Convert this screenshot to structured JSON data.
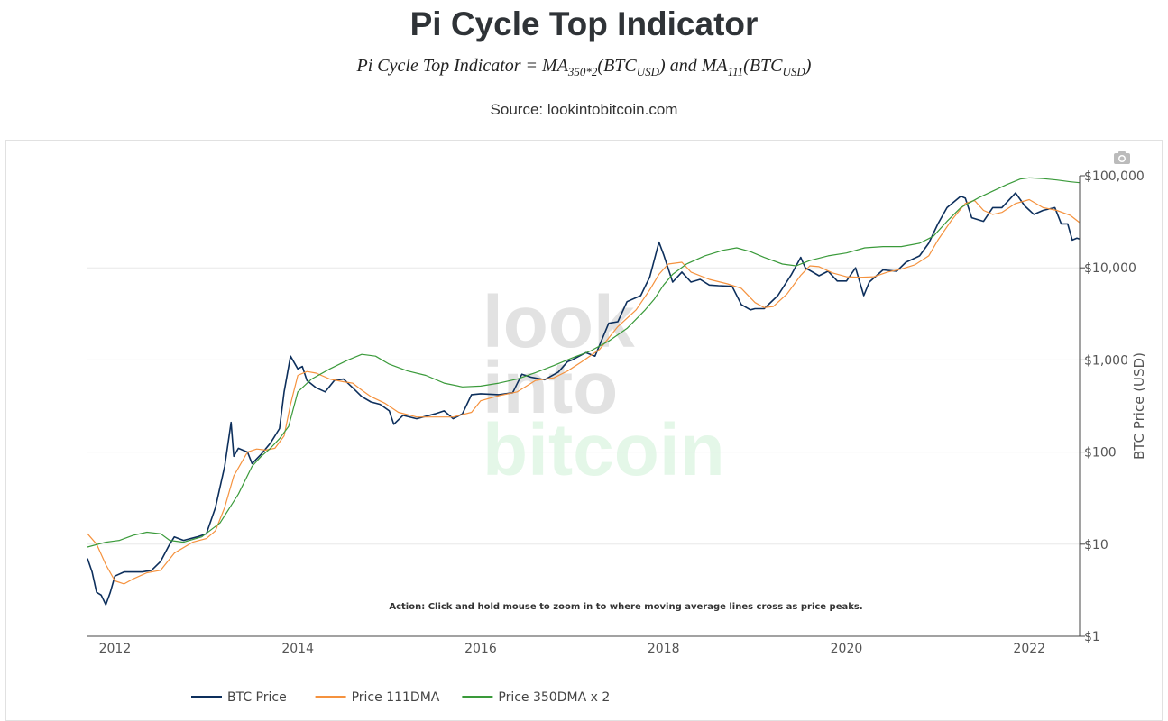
{
  "header": {
    "title": "Pi Cycle Top Indicator",
    "formula_lhs": "Pi Cycle Top Indicator = MA",
    "formula_sub1": "350*2",
    "formula_mid1": "(BTC",
    "formula_sub2": "USD",
    "formula_mid2": ") and MA",
    "formula_sub3": "111",
    "formula_mid3": "(BTC",
    "formula_sub4": "USD",
    "formula_end": ")",
    "source": "Source: lookintobitcoin.com"
  },
  "watermark": {
    "line1": "look",
    "line2": "into",
    "line3": "bitcoin"
  },
  "action_note": "Action: Click and hold mouse to zoom in to where moving average lines cross as price peaks.",
  "chart_data": {
    "type": "line",
    "title": "Pi Cycle Top Indicator",
    "ylabel": "BTC Price (USD)",
    "yscale": "log",
    "ylim": [
      1,
      100000
    ],
    "xlim": [
      2011.7,
      2022.55
    ],
    "x_ticks": [
      2012,
      2014,
      2016,
      2018,
      2020,
      2022
    ],
    "x_tick_labels": [
      "2012",
      "2014",
      "2016",
      "2018",
      "2020",
      "2022"
    ],
    "y_ticks": [
      1,
      10,
      100,
      1000,
      10000,
      100000
    ],
    "y_tick_labels": [
      "$1",
      "$10",
      "$100",
      "$1,000",
      "$10,000",
      "$100,000"
    ],
    "legend_position": "bottom-left",
    "series": [
      {
        "name": "BTC Price",
        "color": "#0d2f5c",
        "points": [
          [
            2011.7,
            7
          ],
          [
            2011.75,
            5
          ],
          [
            2011.8,
            3
          ],
          [
            2011.85,
            2.8
          ],
          [
            2011.9,
            2.2
          ],
          [
            2011.95,
            3
          ],
          [
            2012.0,
            4.5
          ],
          [
            2012.1,
            5
          ],
          [
            2012.2,
            5
          ],
          [
            2012.3,
            5
          ],
          [
            2012.4,
            5.2
          ],
          [
            2012.5,
            6.5
          ],
          [
            2012.6,
            10
          ],
          [
            2012.65,
            12
          ],
          [
            2012.75,
            11
          ],
          [
            2012.9,
            12
          ],
          [
            2013.0,
            13
          ],
          [
            2013.1,
            25
          ],
          [
            2013.2,
            70
          ],
          [
            2013.27,
            210
          ],
          [
            2013.3,
            90
          ],
          [
            2013.35,
            110
          ],
          [
            2013.45,
            100
          ],
          [
            2013.5,
            75
          ],
          [
            2013.6,
            95
          ],
          [
            2013.7,
            125
          ],
          [
            2013.8,
            180
          ],
          [
            2013.85,
            450
          ],
          [
            2013.92,
            1100
          ],
          [
            2014.0,
            800
          ],
          [
            2014.05,
            850
          ],
          [
            2014.1,
            600
          ],
          [
            2014.2,
            500
          ],
          [
            2014.3,
            450
          ],
          [
            2014.4,
            600
          ],
          [
            2014.5,
            620
          ],
          [
            2014.6,
            500
          ],
          [
            2014.7,
            400
          ],
          [
            2014.8,
            350
          ],
          [
            2014.9,
            330
          ],
          [
            2015.0,
            280
          ],
          [
            2015.05,
            200
          ],
          [
            2015.15,
            250
          ],
          [
            2015.3,
            230
          ],
          [
            2015.5,
            260
          ],
          [
            2015.6,
            280
          ],
          [
            2015.7,
            230
          ],
          [
            2015.8,
            260
          ],
          [
            2015.9,
            420
          ],
          [
            2016.0,
            430
          ],
          [
            2016.2,
            420
          ],
          [
            2016.35,
            440
          ],
          [
            2016.45,
            700
          ],
          [
            2016.55,
            650
          ],
          [
            2016.7,
            610
          ],
          [
            2016.85,
            740
          ],
          [
            2016.95,
            960
          ],
          [
            2017.0,
            1000
          ],
          [
            2017.15,
            1200
          ],
          [
            2017.25,
            1100
          ],
          [
            2017.4,
            2500
          ],
          [
            2017.5,
            2600
          ],
          [
            2017.6,
            4300
          ],
          [
            2017.75,
            5000
          ],
          [
            2017.85,
            8000
          ],
          [
            2017.95,
            19000
          ],
          [
            2018.0,
            14000
          ],
          [
            2018.1,
            7000
          ],
          [
            2018.2,
            9000
          ],
          [
            2018.3,
            7000
          ],
          [
            2018.4,
            7500
          ],
          [
            2018.5,
            6500
          ],
          [
            2018.6,
            6400
          ],
          [
            2018.75,
            6300
          ],
          [
            2018.85,
            4000
          ],
          [
            2018.95,
            3500
          ],
          [
            2019.0,
            3600
          ],
          [
            2019.1,
            3600
          ],
          [
            2019.25,
            5000
          ],
          [
            2019.4,
            8500
          ],
          [
            2019.5,
            13000
          ],
          [
            2019.55,
            10000
          ],
          [
            2019.7,
            8200
          ],
          [
            2019.8,
            9200
          ],
          [
            2019.9,
            7200
          ],
          [
            2020.0,
            7200
          ],
          [
            2020.1,
            10000
          ],
          [
            2020.19,
            5000
          ],
          [
            2020.25,
            7000
          ],
          [
            2020.4,
            9500
          ],
          [
            2020.55,
            9200
          ],
          [
            2020.65,
            11500
          ],
          [
            2020.8,
            13500
          ],
          [
            2020.9,
            18500
          ],
          [
            2021.0,
            30000
          ],
          [
            2021.1,
            45000
          ],
          [
            2021.25,
            60000
          ],
          [
            2021.3,
            57000
          ],
          [
            2021.37,
            35000
          ],
          [
            2021.5,
            32000
          ],
          [
            2021.6,
            45000
          ],
          [
            2021.7,
            45000
          ],
          [
            2021.85,
            65000
          ],
          [
            2021.95,
            47000
          ],
          [
            2022.05,
            38000
          ],
          [
            2022.15,
            42000
          ],
          [
            2022.28,
            45000
          ],
          [
            2022.35,
            30000
          ],
          [
            2022.42,
            30000
          ],
          [
            2022.47,
            20000
          ],
          [
            2022.52,
            21000
          ],
          [
            2022.55,
            20500
          ]
        ]
      },
      {
        "name": "Price 111DMA",
        "color": "#f5923e",
        "points": [
          [
            2011.7,
            13
          ],
          [
            2011.8,
            10
          ],
          [
            2011.9,
            6
          ],
          [
            2012.0,
            4.0
          ],
          [
            2012.1,
            3.7
          ],
          [
            2012.2,
            4.2
          ],
          [
            2012.35,
            4.9
          ],
          [
            2012.5,
            5.2
          ],
          [
            2012.65,
            8
          ],
          [
            2012.85,
            10.5
          ],
          [
            2013.0,
            11.5
          ],
          [
            2013.1,
            14
          ],
          [
            2013.2,
            25
          ],
          [
            2013.3,
            55
          ],
          [
            2013.45,
            100
          ],
          [
            2013.55,
            108
          ],
          [
            2013.65,
            105
          ],
          [
            2013.75,
            110
          ],
          [
            2013.85,
            150
          ],
          [
            2013.92,
            330
          ],
          [
            2014.0,
            680
          ],
          [
            2014.1,
            750
          ],
          [
            2014.2,
            720
          ],
          [
            2014.35,
            620
          ],
          [
            2014.5,
            580
          ],
          [
            2014.6,
            560
          ],
          [
            2014.7,
            470
          ],
          [
            2014.8,
            400
          ],
          [
            2014.95,
            340
          ],
          [
            2015.1,
            270
          ],
          [
            2015.3,
            240
          ],
          [
            2015.5,
            240
          ],
          [
            2015.7,
            240
          ],
          [
            2015.9,
            270
          ],
          [
            2016.0,
            360
          ],
          [
            2016.2,
            410
          ],
          [
            2016.4,
            450
          ],
          [
            2016.6,
            600
          ],
          [
            2016.8,
            640
          ],
          [
            2016.95,
            760
          ],
          [
            2017.1,
            950
          ],
          [
            2017.3,
            1300
          ],
          [
            2017.5,
            2300
          ],
          [
            2017.7,
            3500
          ],
          [
            2017.85,
            5800
          ],
          [
            2017.95,
            8500
          ],
          [
            2018.05,
            11000
          ],
          [
            2018.2,
            11500
          ],
          [
            2018.3,
            9000
          ],
          [
            2018.5,
            7500
          ],
          [
            2018.7,
            6700
          ],
          [
            2018.85,
            6000
          ],
          [
            2019.0,
            4200
          ],
          [
            2019.1,
            3700
          ],
          [
            2019.2,
            3800
          ],
          [
            2019.35,
            5200
          ],
          [
            2019.5,
            8300
          ],
          [
            2019.6,
            10500
          ],
          [
            2019.7,
            10300
          ],
          [
            2019.85,
            8800
          ],
          [
            2020.0,
            8000
          ],
          [
            2020.15,
            7900
          ],
          [
            2020.3,
            8000
          ],
          [
            2020.45,
            9000
          ],
          [
            2020.6,
            9700
          ],
          [
            2020.75,
            10800
          ],
          [
            2020.9,
            13500
          ],
          [
            2021.0,
            20000
          ],
          [
            2021.15,
            33000
          ],
          [
            2021.3,
            50000
          ],
          [
            2021.4,
            54000
          ],
          [
            2021.5,
            42000
          ],
          [
            2021.6,
            38000
          ],
          [
            2021.7,
            40000
          ],
          [
            2021.85,
            50000
          ],
          [
            2022.0,
            55000
          ],
          [
            2022.15,
            45000
          ],
          [
            2022.3,
            42000
          ],
          [
            2022.45,
            37000
          ],
          [
            2022.55,
            31000
          ]
        ]
      },
      {
        "name": "Price 350DMA x 2",
        "color": "#3a9a3a",
        "points": [
          [
            2011.7,
            9.3
          ],
          [
            2011.9,
            10.5
          ],
          [
            2012.05,
            11
          ],
          [
            2012.2,
            12.5
          ],
          [
            2012.35,
            13.5
          ],
          [
            2012.5,
            13
          ],
          [
            2012.6,
            11
          ],
          [
            2012.75,
            10.5
          ],
          [
            2012.95,
            12
          ],
          [
            2013.15,
            17
          ],
          [
            2013.35,
            35
          ],
          [
            2013.5,
            70
          ],
          [
            2013.6,
            90
          ],
          [
            2013.7,
            110
          ],
          [
            2013.8,
            140
          ],
          [
            2013.9,
            190
          ],
          [
            2014.0,
            450
          ],
          [
            2014.15,
            620
          ],
          [
            2014.35,
            800
          ],
          [
            2014.55,
            1000
          ],
          [
            2014.7,
            1150
          ],
          [
            2014.85,
            1100
          ],
          [
            2015.0,
            900
          ],
          [
            2015.2,
            760
          ],
          [
            2015.4,
            680
          ],
          [
            2015.6,
            560
          ],
          [
            2015.8,
            510
          ],
          [
            2016.0,
            520
          ],
          [
            2016.2,
            560
          ],
          [
            2016.4,
            620
          ],
          [
            2016.6,
            730
          ],
          [
            2016.8,
            870
          ],
          [
            2017.0,
            1050
          ],
          [
            2017.2,
            1250
          ],
          [
            2017.4,
            1600
          ],
          [
            2017.6,
            2200
          ],
          [
            2017.8,
            3500
          ],
          [
            2017.9,
            4600
          ],
          [
            2018.0,
            6500
          ],
          [
            2018.1,
            8500
          ],
          [
            2018.25,
            11000
          ],
          [
            2018.45,
            13500
          ],
          [
            2018.65,
            15500
          ],
          [
            2018.8,
            16500
          ],
          [
            2018.95,
            15000
          ],
          [
            2019.1,
            13000
          ],
          [
            2019.3,
            11000
          ],
          [
            2019.45,
            10500
          ],
          [
            2019.6,
            12000
          ],
          [
            2019.8,
            13500
          ],
          [
            2020.0,
            14500
          ],
          [
            2020.2,
            16500
          ],
          [
            2020.4,
            17000
          ],
          [
            2020.6,
            17000
          ],
          [
            2020.8,
            18500
          ],
          [
            2020.95,
            22000
          ],
          [
            2021.1,
            32000
          ],
          [
            2021.25,
            45000
          ],
          [
            2021.45,
            58000
          ],
          [
            2021.6,
            68000
          ],
          [
            2021.75,
            80000
          ],
          [
            2021.9,
            92000
          ],
          [
            2022.0,
            95000
          ],
          [
            2022.15,
            93000
          ],
          [
            2022.3,
            90000
          ],
          [
            2022.45,
            86000
          ],
          [
            2022.55,
            84000
          ]
        ]
      }
    ]
  },
  "colors": {
    "btc_price": "#0d2f5c",
    "ma111": "#f5923e",
    "ma350x2": "#3a9a3a",
    "watermark_grey": "#e2e2e2",
    "watermark_green": "#e4f7e8",
    "axis_text": "#555555",
    "grid": "#e8e8e8"
  },
  "icons": {
    "camera": "camera-icon"
  }
}
